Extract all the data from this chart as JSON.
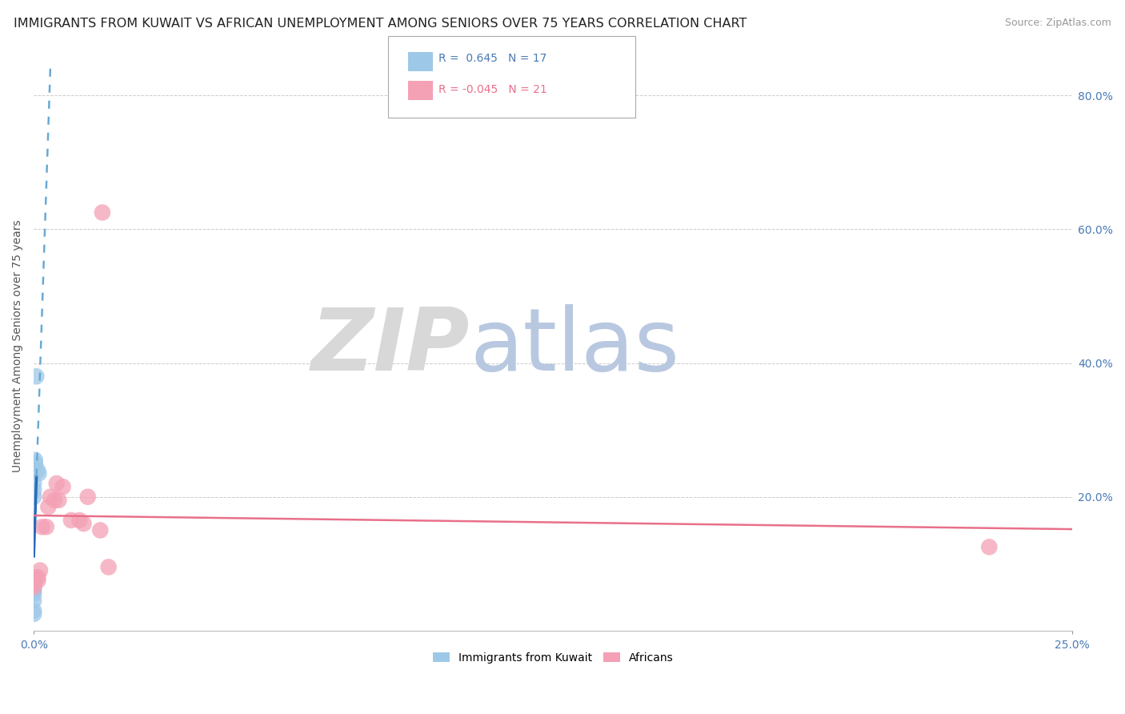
{
  "title": "IMMIGRANTS FROM KUWAIT VS AFRICAN UNEMPLOYMENT AMONG SENIORS OVER 75 YEARS CORRELATION CHART",
  "source": "Source: ZipAtlas.com",
  "ylabel": "Unemployment Among Seniors over 75 years",
  "kuwait_points": [
    [
      0.0,
      0.025
    ],
    [
      0.0,
      0.03
    ],
    [
      0.0,
      0.045
    ],
    [
      0.0,
      0.055
    ],
    [
      0.0,
      0.06
    ],
    [
      0.0,
      0.065
    ],
    [
      0.0,
      0.07
    ],
    [
      0.0,
      0.075
    ],
    [
      0.0,
      0.08
    ],
    [
      0.0,
      0.2
    ],
    [
      0.0,
      0.21
    ],
    [
      0.0,
      0.22
    ],
    [
      0.0003,
      0.25
    ],
    [
      0.0003,
      0.255
    ],
    [
      0.0006,
      0.38
    ],
    [
      0.0009,
      0.24
    ],
    [
      0.0012,
      0.235
    ]
  ],
  "african_points": [
    [
      0.0,
      0.065
    ],
    [
      0.0,
      0.07
    ],
    [
      0.001,
      0.075
    ],
    [
      0.001,
      0.08
    ],
    [
      0.0015,
      0.09
    ],
    [
      0.002,
      0.155
    ],
    [
      0.003,
      0.155
    ],
    [
      0.0035,
      0.185
    ],
    [
      0.004,
      0.2
    ],
    [
      0.005,
      0.195
    ],
    [
      0.0055,
      0.22
    ],
    [
      0.006,
      0.195
    ],
    [
      0.007,
      0.215
    ],
    [
      0.009,
      0.165
    ],
    [
      0.011,
      0.165
    ],
    [
      0.012,
      0.16
    ],
    [
      0.013,
      0.2
    ],
    [
      0.016,
      0.15
    ],
    [
      0.0165,
      0.625
    ],
    [
      0.018,
      0.095
    ],
    [
      0.23,
      0.125
    ]
  ],
  "kuwait_color": "#9ec8e8",
  "african_color": "#f4a0b5",
  "kuwait_line_solid_color": "#2b6cb8",
  "kuwait_line_dash_color": "#6aaad4",
  "african_line_color": "#e8708a",
  "xlim": [
    0.0,
    0.25
  ],
  "ylim": [
    0.0,
    0.85
  ],
  "yticks": [
    0.0,
    0.2,
    0.4,
    0.6,
    0.8
  ],
  "ytick_labels_right": [
    "",
    "20.0%",
    "40.0%",
    "60.0%",
    "80.0%"
  ],
  "grid_color": "#cccccc",
  "background_color": "#ffffff",
  "watermark_zip_color": "#d8d8d8",
  "watermark_atlas_color": "#b8c8e0",
  "title_fontsize": 11.5,
  "legend_r1_text": "R =  0.645   N = 17",
  "legend_r2_text": "R = -0.045   N = 21",
  "legend_r1_color": "#4a7ab5",
  "legend_r2_color": "#e8708a",
  "bottom_legend_labels": [
    "Immigrants from Kuwait",
    "Africans"
  ]
}
